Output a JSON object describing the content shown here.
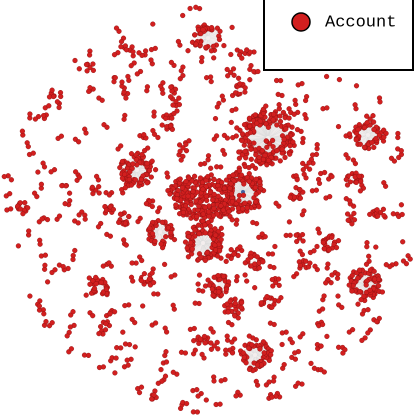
{
  "legend": {
    "items": [
      {
        "label": "Account",
        "color": "#d21f1f"
      }
    ]
  }
}
